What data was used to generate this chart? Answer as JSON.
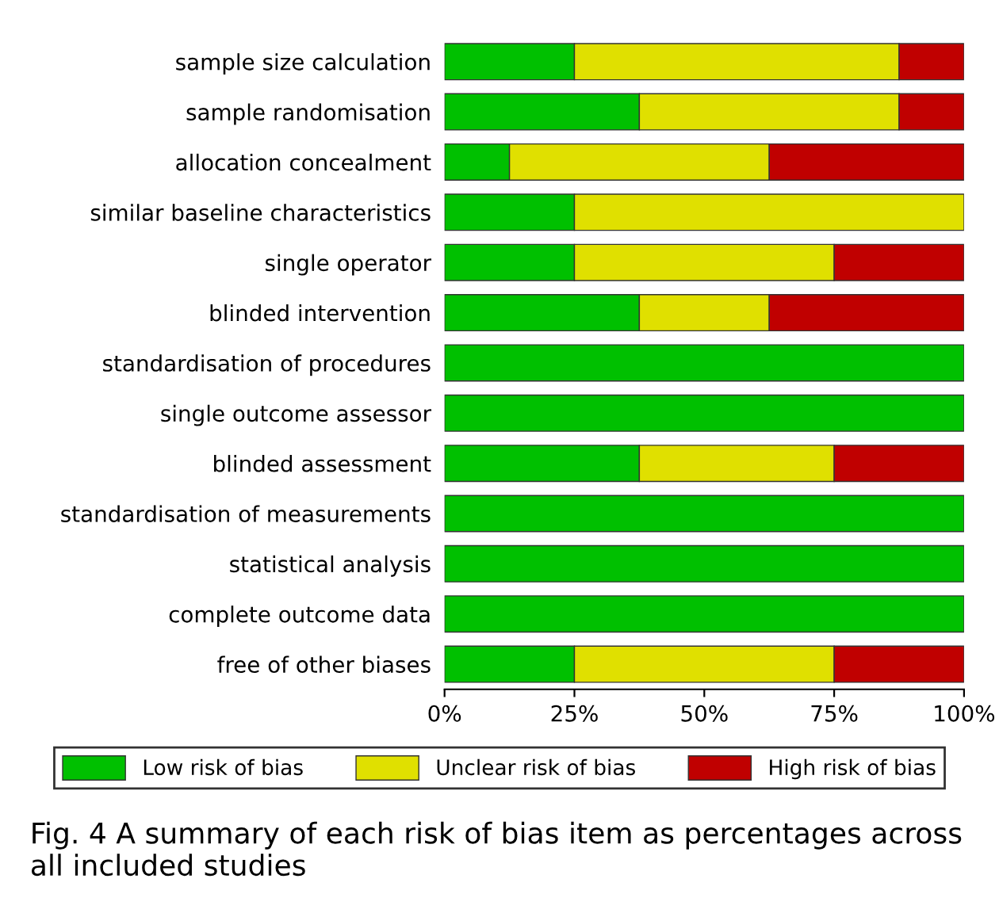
{
  "chart_data": {
    "type": "bar",
    "orientation": "horizontal",
    "stacked": true,
    "categories": [
      "sample size calculation",
      "sample randomisation",
      "allocation concealment",
      "similar baseline characteristics",
      "single operator",
      "blinded intervention",
      "standardisation of procedures",
      "single outcome assessor",
      "blinded assessment",
      "standardisation of measurements",
      "statistical analysis",
      "complete outcome data",
      "free of other biases"
    ],
    "series": [
      {
        "name": "Low risk of bias",
        "color": "#00c000",
        "values": [
          25,
          37.5,
          12.5,
          25,
          25,
          37.5,
          100,
          100,
          37.5,
          100,
          100,
          100,
          25
        ]
      },
      {
        "name": "Unclear risk of bias",
        "color": "#e0e000",
        "values": [
          62.5,
          50,
          50,
          75,
          50,
          25,
          null,
          null,
          37.5,
          null,
          null,
          null,
          50
        ]
      },
      {
        "name": "High risk of bias",
        "color": "#c00000",
        "values": [
          12.5,
          12.5,
          37.5,
          null,
          25,
          37.5,
          null,
          null,
          25,
          null,
          null,
          null,
          25
        ]
      }
    ],
    "xlim": [
      0,
      100
    ],
    "xticks": [
      {
        "value": 0,
        "label": "0%"
      },
      {
        "value": 25,
        "label": "25%"
      },
      {
        "value": 50,
        "label": "50%"
      },
      {
        "value": 75,
        "label": "75%"
      },
      {
        "value": 100,
        "label": "100%"
      }
    ],
    "grid": false,
    "legend": "bottom",
    "annotations": [
      "Fig. 4 A summary of each risk of bias item as percentages across all included studies"
    ]
  }
}
